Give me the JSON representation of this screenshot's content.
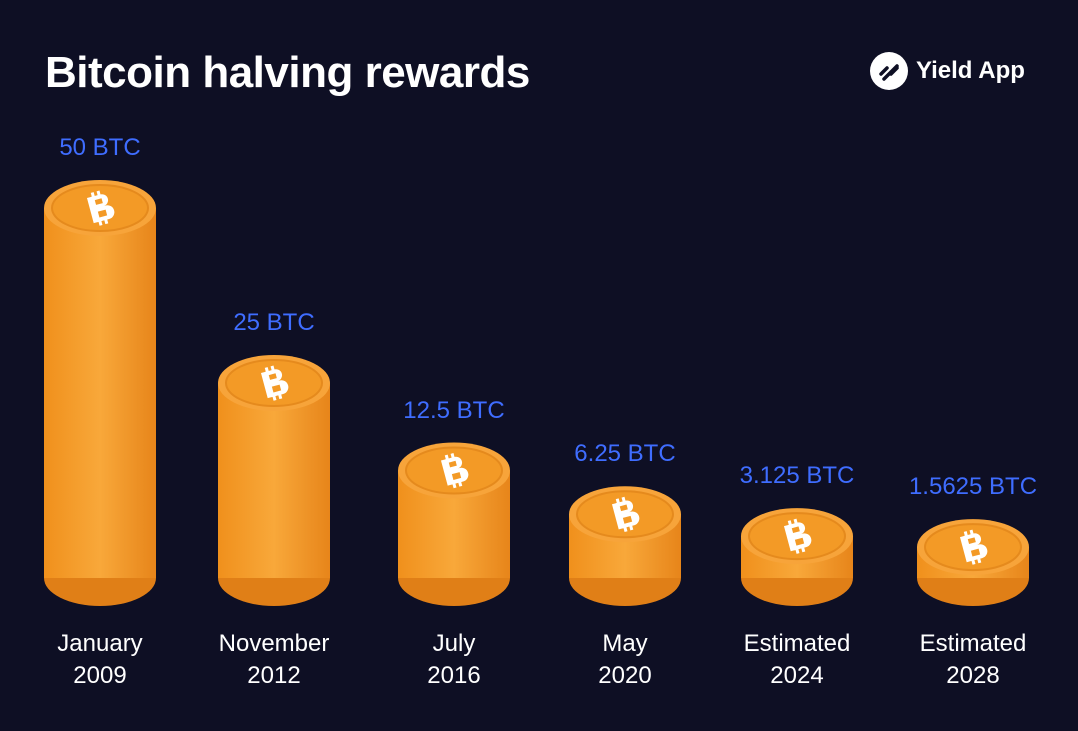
{
  "brand": "Yield App",
  "chart_data": {
    "type": "coin-stack",
    "title": "Bitcoin halving rewards",
    "categories": [
      "January 2009",
      "November 2012",
      "July 2016",
      "May 2020",
      "Estimated 2024",
      "Estimated 2028"
    ],
    "values": [
      50,
      25,
      12.5,
      6.25,
      3.125,
      1.5625
    ],
    "value_labels": [
      "50 BTC",
      "25 BTC",
      "12.5 BTC",
      "6.25 BTC",
      "3.125 BTC",
      "1.5625 BTC"
    ],
    "color": "#f39a26",
    "label_color": "#3f6dff"
  }
}
